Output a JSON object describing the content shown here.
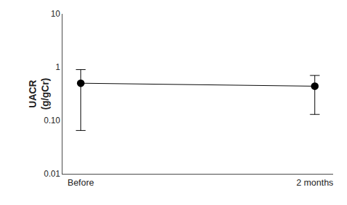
{
  "chart_data": {
    "type": "line",
    "categories": [
      "Before",
      "2 months"
    ],
    "values": [
      0.5,
      0.44
    ],
    "error_upper": [
      0.9,
      0.7
    ],
    "error_lower": [
      0.065,
      0.13
    ],
    "y_label": "UACR\n(g/gCr)",
    "log": "y",
    "ylim": [
      0.01,
      10
    ],
    "yticks": [
      0.01,
      {
        "value": 0.1,
        "label": "0.10"
      },
      1,
      10
    ],
    "color": "black",
    "marker": "circle",
    "line_style": "solid",
    "grid": false
  }
}
